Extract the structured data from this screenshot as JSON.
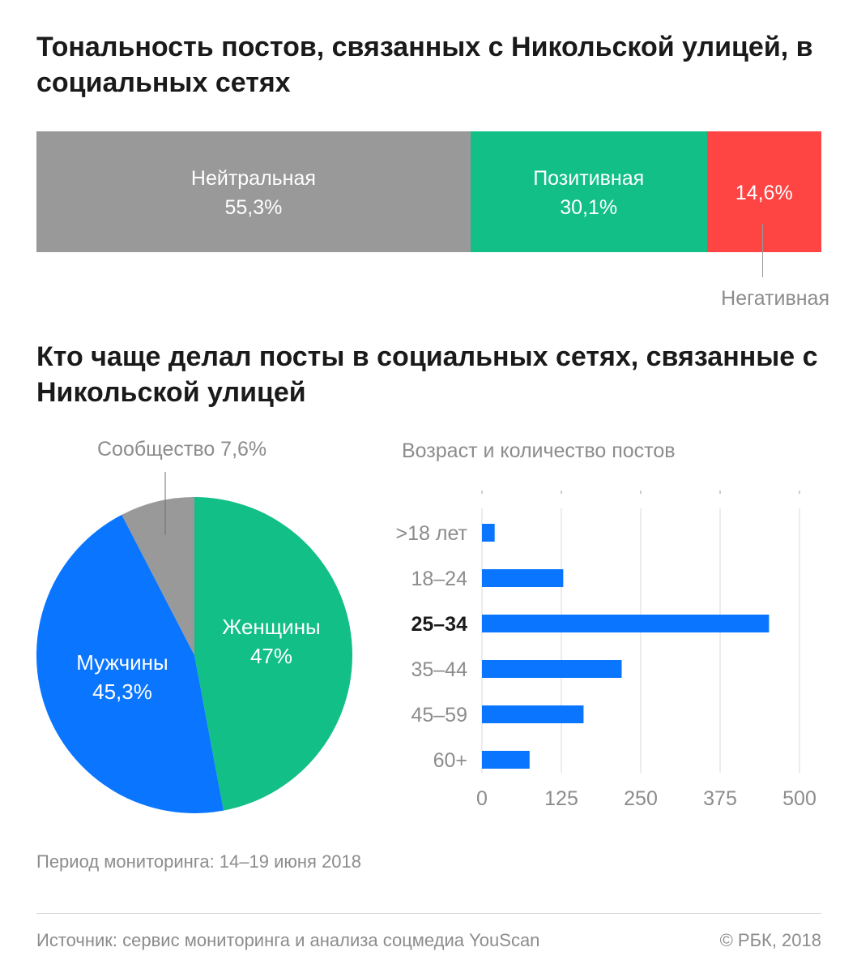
{
  "title1": "Тональность постов, связанных с Никольской улицей, в социальных сетях",
  "title2": "Кто чаще делал посты в социальных сетях, связанные с Никольской улицей",
  "period": "Период мониторинга: 14–19 июня 2018",
  "source": "Источник: сервис мониторинга и анализа соцмедиа YouScan",
  "copyright": "© РБК, 2018",
  "colors": {
    "neutral": "#999999",
    "positive": "#12bf86",
    "negative": "#ff4444",
    "men": "#0a75ff",
    "women": "#12bf86",
    "community": "#999999",
    "bars": "#0a75ff"
  },
  "chart_data": [
    {
      "type": "bar",
      "orientation": "horizontal-stacked-100",
      "segments": [
        {
          "name": "Нейтральная",
          "value": 55.3,
          "label": "55,3%"
        },
        {
          "name": "Позитивная",
          "value": 30.1,
          "label": "30,1%"
        },
        {
          "name": "Негативная",
          "value": 14.6,
          "label": "14,6%"
        }
      ]
    },
    {
      "type": "pie",
      "slices": [
        {
          "name": "Женщины",
          "value": 47.0,
          "label": "47%"
        },
        {
          "name": "Мужчины",
          "value": 45.3,
          "label": "45,3%"
        },
        {
          "name": "Сообщество",
          "value": 7.6,
          "label": "7,6%"
        }
      ],
      "community_caption": "Сообщество 7,6%"
    },
    {
      "type": "bar",
      "orientation": "horizontal",
      "title": "Возраст и количество постов",
      "categories": [
        ">18 лет",
        "18–24",
        "25–34",
        "35–44",
        "45–59",
        "60+"
      ],
      "highlight": "25–34",
      "values": [
        20,
        128,
        452,
        220,
        160,
        75
      ],
      "xlim": [
        0,
        500
      ],
      "xticks": [
        "0",
        "125",
        "250",
        "375",
        "500"
      ],
      "grid": true
    }
  ]
}
